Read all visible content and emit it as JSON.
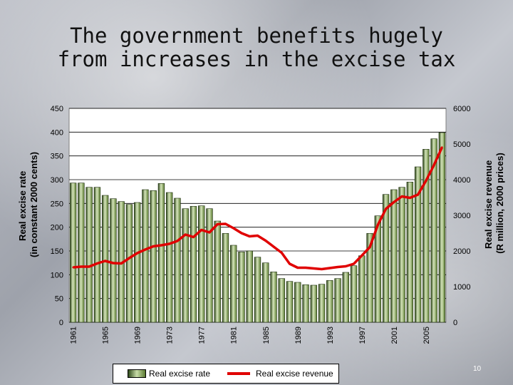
{
  "slide": {
    "title": "The government benefits hugely from increases in the excise tax",
    "page_number": "10"
  },
  "chart_data": {
    "type": "bar",
    "categories": [
      "1961",
      "1962",
      "1963",
      "1964",
      "1965",
      "1966",
      "1967",
      "1968",
      "1969",
      "1970",
      "1971",
      "1972",
      "1973",
      "1974",
      "1975",
      "1976",
      "1977",
      "1978",
      "1979",
      "1980",
      "1981",
      "1982",
      "1983",
      "1984",
      "1985",
      "1986",
      "1987",
      "1988",
      "1989",
      "1990",
      "1991",
      "1992",
      "1993",
      "1994",
      "1995",
      "1996",
      "1997",
      "1998",
      "1999",
      "2000",
      "2001",
      "2002",
      "2003",
      "2004",
      "2005",
      "2006",
      "2007"
    ],
    "x_tick_labels": [
      "1961",
      "1965",
      "1969",
      "1973",
      "1977",
      "1981",
      "1985",
      "1989",
      "1993",
      "1997",
      "2001",
      "2005"
    ],
    "series": [
      {
        "name": "Real excise rate",
        "axis": "left",
        "kind": "bar",
        "values": [
          293,
          293,
          284,
          284,
          267,
          260,
          254,
          248,
          252,
          279,
          277,
          292,
          273,
          261,
          239,
          244,
          245,
          239,
          213,
          187,
          162,
          148,
          150,
          137,
          125,
          106,
          92,
          86,
          84,
          79,
          78,
          80,
          88,
          92,
          105,
          119,
          140,
          187,
          224,
          269,
          279,
          284,
          295,
          327,
          364,
          386,
          399
        ]
      },
      {
        "name": "Real excise revenue",
        "axis": "right",
        "kind": "line",
        "values": [
          1540,
          1560,
          1560,
          1650,
          1720,
          1660,
          1650,
          1800,
          1940,
          2040,
          2130,
          2160,
          2200,
          2280,
          2460,
          2390,
          2590,
          2520,
          2750,
          2760,
          2640,
          2500,
          2410,
          2430,
          2290,
          2120,
          1950,
          1640,
          1530,
          1530,
          1510,
          1490,
          1520,
          1550,
          1570,
          1640,
          1870,
          2110,
          2730,
          3180,
          3370,
          3530,
          3490,
          3580,
          3970,
          4410,
          4910
        ]
      }
    ],
    "ylabel": "Real excise rate\n(in constant 2000 cents)",
    "ylim": [
      0,
      450
    ],
    "y_ticks": [
      0,
      50,
      100,
      150,
      200,
      250,
      300,
      350,
      400,
      450
    ],
    "y2label": "Real excise revenue\n(R million, 2000 prices)",
    "y2lim": [
      0,
      6000
    ],
    "y2_ticks": [
      0,
      1000,
      2000,
      3000,
      4000,
      5000,
      6000
    ],
    "grid": "horizontal",
    "legend_position": "bottom",
    "colors": {
      "bar_dark": "#2f4a1a",
      "bar_light": "#cfe0b0",
      "line": "#e00000",
      "plot_bg": "#ffffff",
      "grid": "#000000"
    }
  }
}
